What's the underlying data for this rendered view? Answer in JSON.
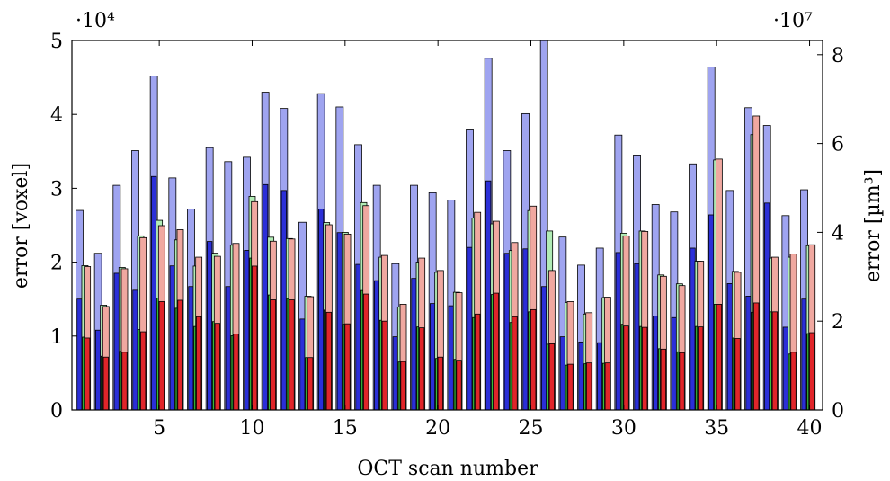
{
  "chart_data": {
    "type": "bar",
    "xlabel": "OCT scan number",
    "ylabel_left": "error [voxel]",
    "ylabel_right": "error [µm³]",
    "left_multiplier": "·10⁴",
    "right_multiplier": "·10⁷",
    "xlim": [
      0.3,
      40.7
    ],
    "ylim_left": [
      0,
      5
    ],
    "ylim_right": [
      0,
      8.32
    ],
    "x_ticks": [
      "5",
      "10",
      "15",
      "20",
      "25",
      "30",
      "35",
      "40"
    ],
    "left_ticks": [
      "0",
      "1",
      "2",
      "3",
      "4",
      "5"
    ],
    "right_ticks": [
      "0",
      "2",
      "4",
      "6",
      "8"
    ],
    "grid": false,
    "categories": [
      1,
      2,
      3,
      4,
      5,
      6,
      7,
      8,
      9,
      10,
      11,
      12,
      13,
      14,
      15,
      16,
      17,
      18,
      19,
      20,
      21,
      22,
      23,
      24,
      25,
      26,
      27,
      28,
      29,
      30,
      31,
      32,
      33,
      34,
      35,
      36,
      37,
      38,
      39,
      40
    ],
    "series": [
      {
        "color": "#9fa4f0",
        "axis": "left",
        "values": [
          2.7,
          2.12,
          3.04,
          3.51,
          4.52,
          3.14,
          2.72,
          3.55,
          3.36,
          3.42,
          4.3,
          4.08,
          2.54,
          4.28,
          4.1,
          3.59,
          3.04,
          1.98,
          3.04,
          2.94,
          2.84,
          3.79,
          4.76,
          3.51,
          4.01,
          5.0,
          2.34,
          1.96,
          2.19,
          3.72,
          3.45,
          2.78,
          2.68,
          3.33,
          4.64,
          2.97,
          4.09,
          3.85,
          2.63,
          2.98
        ]
      },
      {
        "color": "#2b2fd8",
        "axis": "left",
        "values": [
          1.5,
          1.08,
          1.85,
          1.62,
          3.16,
          1.95,
          1.67,
          2.28,
          1.67,
          2.16,
          3.05,
          2.97,
          1.23,
          2.72,
          2.4,
          1.97,
          1.75,
          0.99,
          1.78,
          1.44,
          1.41,
          2.2,
          3.1,
          2.12,
          2.18,
          1.67,
          0.99,
          0.92,
          0.91,
          2.13,
          1.98,
          1.27,
          1.25,
          2.19,
          2.64,
          1.71,
          1.54,
          2.8,
          1.12,
          1.5
        ]
      },
      {
        "color": "#b2ecb6",
        "axis": "right",
        "values": [
          3.25,
          2.36,
          3.21,
          3.92,
          4.27,
          3.83,
          3.24,
          3.53,
          3.71,
          4.81,
          3.89,
          3.86,
          2.56,
          4.22,
          4.0,
          4.67,
          3.44,
          2.32,
          3.33,
          3.1,
          2.65,
          4.32,
          4.19,
          3.59,
          4.49,
          4.03,
          2.42,
          2.16,
          2.53,
          3.98,
          4.03,
          3.04,
          2.84,
          3.35,
          5.63,
          3.12,
          6.2,
          3.42,
          3.44,
          3.7
        ]
      },
      {
        "color": "#39c73f",
        "axis": "right",
        "values": [
          1.64,
          1.21,
          1.32,
          1.81,
          2.52,
          2.29,
          1.88,
          1.99,
          1.67,
          3.42,
          2.59,
          2.51,
          1.18,
          2.25,
          1.93,
          2.69,
          2.02,
          1.08,
          1.87,
          1.16,
          1.14,
          2.08,
          2.6,
          1.97,
          2.21,
          1.48,
          1.01,
          1.04,
          1.05,
          1.93,
          1.88,
          1.38,
          1.31,
          1.88,
          2.38,
          1.62,
          2.2,
          2.21,
          1.26,
          1.72
        ]
      },
      {
        "color": "#f0a8a0",
        "axis": "right",
        "values": [
          3.23,
          2.33,
          3.18,
          3.88,
          4.15,
          4.06,
          3.44,
          3.46,
          3.75,
          4.69,
          3.8,
          3.85,
          2.55,
          4.17,
          3.96,
          4.6,
          3.48,
          2.38,
          3.42,
          3.14,
          2.64,
          4.45,
          4.25,
          3.77,
          4.59,
          3.14,
          2.44,
          2.19,
          2.54,
          3.92,
          4.02,
          3.01,
          2.8,
          3.35,
          5.65,
          3.1,
          6.62,
          3.44,
          3.51,
          3.72
        ]
      },
      {
        "color": "#e0252a",
        "axis": "right",
        "values": [
          1.62,
          1.19,
          1.3,
          1.76,
          2.44,
          2.47,
          2.1,
          1.95,
          1.71,
          3.24,
          2.48,
          2.48,
          1.18,
          2.2,
          1.94,
          2.61,
          2.0,
          1.09,
          1.85,
          1.19,
          1.12,
          2.16,
          2.63,
          2.1,
          2.26,
          1.49,
          1.03,
          1.06,
          1.06,
          1.89,
          1.86,
          1.37,
          1.29,
          1.87,
          2.38,
          1.61,
          2.41,
          2.21,
          1.3,
          1.74
        ]
      }
    ]
  }
}
